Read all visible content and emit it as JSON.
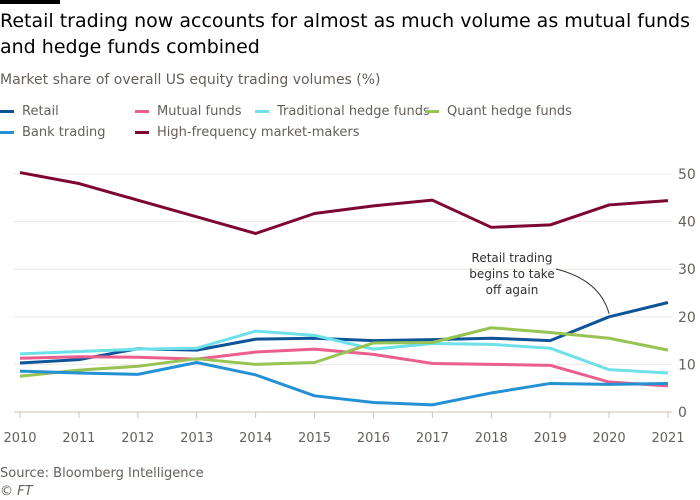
{
  "title": "Retail trading now accounts for almost as much volume as mutual funds and hedge funds combined",
  "subtitle": "Market share of overall US equity trading volumes (%)",
  "source": "Source: Bloomberg Intelligence",
  "credit": "© FT",
  "chart_data": {
    "type": "line",
    "title": "Retail trading now accounts for almost as much volume as mutual funds and hedge funds combined",
    "subtitle": "Market share of overall US equity trading volumes (%)",
    "x": [
      2010,
      2011,
      2012,
      2013,
      2014,
      2015,
      2016,
      2017,
      2018,
      2019,
      2020,
      2021
    ],
    "ylim": [
      0,
      50
    ],
    "yticks": [
      0,
      10,
      20,
      30,
      40,
      50
    ],
    "y_axis_side": "right",
    "grid": true,
    "legend_placement": "top",
    "series": [
      {
        "name": "Retail",
        "color": "#0f5499",
        "values": [
          10.3,
          11,
          13.3,
          13,
          15.3,
          15.5,
          15,
          15.2,
          15.5,
          15,
          20,
          23
        ]
      },
      {
        "name": "Mutual funds",
        "color": "#eb5e8d",
        "values": [
          11.3,
          11.6,
          11.5,
          11.1,
          12.6,
          13.2,
          12.1,
          10.2,
          10,
          9.8,
          6.3,
          5.5
        ]
      },
      {
        "name": "Traditional hedge funds",
        "color": "#6de0e8",
        "values": [
          12.2,
          12.7,
          13.2,
          13.4,
          17,
          16.1,
          13.2,
          14.4,
          14.2,
          13.4,
          8.9,
          8.2
        ]
      },
      {
        "name": "Quant hedge funds",
        "color": "#96c351",
        "values": [
          7.5,
          8.8,
          9.6,
          11.2,
          10,
          10.4,
          14.5,
          14.6,
          17.7,
          16.7,
          15.5,
          13
        ]
      },
      {
        "name": "Bank trading",
        "color": "#2391d4",
        "values": [
          8.6,
          8.2,
          7.9,
          10.4,
          7.8,
          3.4,
          2,
          1.5,
          4,
          6,
          5.8,
          6
        ]
      },
      {
        "name": "High-frequency market-makers",
        "color": "#7d0633",
        "values": [
          50.3,
          48,
          44.5,
          41,
          37.5,
          41.7,
          43.3,
          44.5,
          38.8,
          39.3,
          43.5,
          44.4
        ]
      }
    ],
    "annotations": [
      {
        "text": [
          "Retail trading",
          "begins to take",
          "off again"
        ],
        "x": 2020,
        "y": 20
      }
    ]
  }
}
